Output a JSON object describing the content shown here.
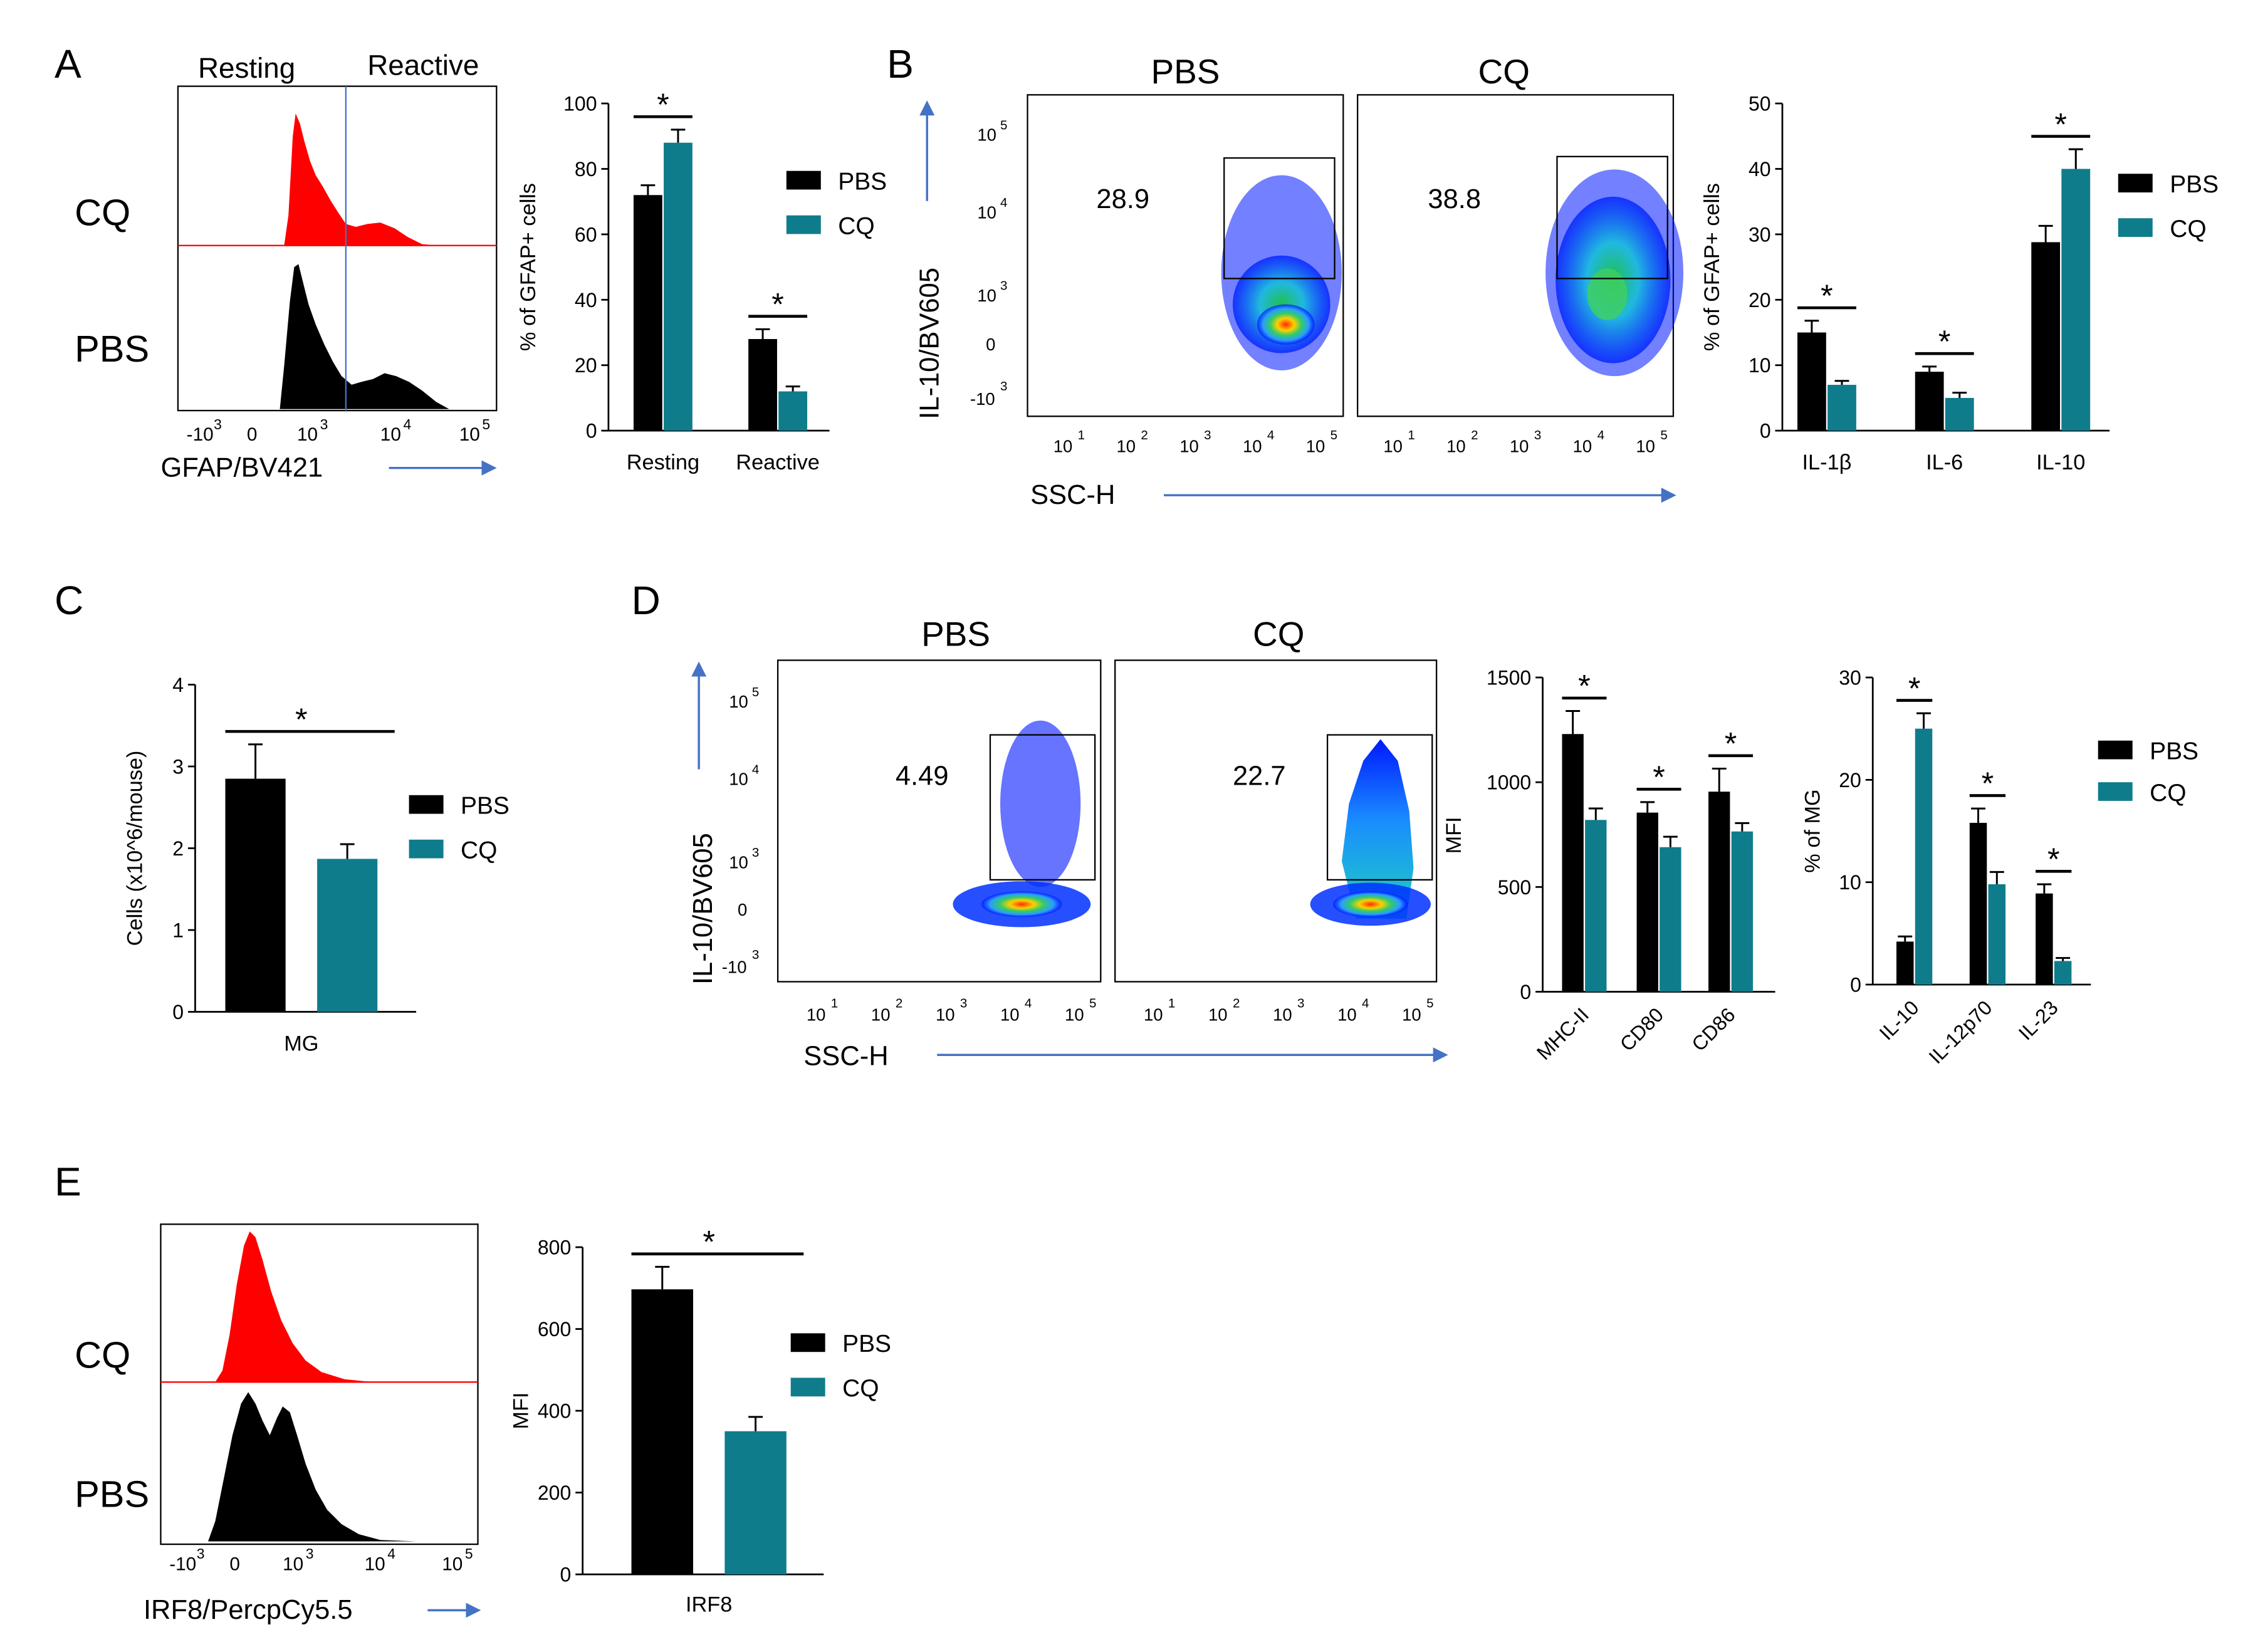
{
  "colors": {
    "pbs": "#000000",
    "cq": "#0f7c8c",
    "cq_hist": "#ff0000",
    "arrow": "#4472c4",
    "axis": "#000000"
  },
  "panels": {
    "A": "A",
    "B": "B",
    "C": "C",
    "D": "D",
    "E": "E"
  },
  "conditions": {
    "pbs": "PBS",
    "cq": "CQ"
  },
  "significance": "*",
  "chart_data": [
    {
      "id": "A_hist",
      "type": "histogram",
      "panel": "A",
      "gate_labels": [
        "Resting",
        "Reactive"
      ],
      "rows": [
        "CQ",
        "PBS"
      ],
      "xlabel": "GFAP/BV421",
      "xticks": [
        "-10^3",
        "0",
        "10^3",
        "10^4",
        "10^5"
      ]
    },
    {
      "id": "A_bar",
      "type": "bar",
      "panel": "A",
      "categories": [
        "Resting",
        "Reactive"
      ],
      "series": [
        {
          "name": "PBS",
          "values": [
            72,
            28
          ],
          "errors": [
            3,
            3
          ]
        },
        {
          "name": "CQ",
          "values": [
            88,
            12
          ],
          "errors": [
            4,
            1.5
          ]
        }
      ],
      "ylabel": "% of GFAP+ cells",
      "ylim": [
        0,
        100
      ],
      "yticks": [
        0,
        20,
        40,
        60,
        80,
        100
      ],
      "legend": [
        "PBS",
        "CQ"
      ]
    },
    {
      "id": "B_flow",
      "type": "scatter",
      "panel": "B",
      "plots": [
        {
          "title": "PBS",
          "gate_value": "28.9"
        },
        {
          "title": "CQ",
          "gate_value": "38.8"
        }
      ],
      "ylabel": "IL-10/BV605",
      "xlabel": "SSC-H",
      "yticks": [
        "10^5",
        "10^4",
        "10^3",
        "0",
        "-10^3"
      ],
      "xticks": [
        "10^1",
        "10^2",
        "10^3",
        "10^4",
        "10^5"
      ]
    },
    {
      "id": "B_bar",
      "type": "bar",
      "panel": "B",
      "categories": [
        "IL-1β",
        "IL-6",
        "IL-10"
      ],
      "series": [
        {
          "name": "PBS",
          "values": [
            15,
            9,
            28.8
          ],
          "errors": [
            1.8,
            0.8,
            2.5
          ]
        },
        {
          "name": "CQ",
          "values": [
            7,
            5,
            40
          ],
          "errors": [
            0.6,
            0.8,
            3
          ]
        }
      ],
      "ylabel": "% of GFAP+ cells",
      "ylim": [
        0,
        50
      ],
      "yticks": [
        0,
        10,
        20,
        30,
        40,
        50
      ],
      "legend": [
        "PBS",
        "CQ"
      ]
    },
    {
      "id": "C_bar",
      "type": "bar",
      "panel": "C",
      "categories": [
        "MG"
      ],
      "series": [
        {
          "name": "PBS",
          "values": [
            2.85
          ],
          "errors": [
            0.42
          ]
        },
        {
          "name": "CQ",
          "values": [
            1.87
          ],
          "errors": [
            0.18
          ]
        }
      ],
      "ylabel": "Cells (x10^6/mouse)",
      "ylim": [
        0,
        4
      ],
      "yticks": [
        0,
        1,
        2,
        3,
        4
      ],
      "legend": [
        "PBS",
        "CQ"
      ]
    },
    {
      "id": "D_flow",
      "type": "scatter",
      "panel": "D",
      "plots": [
        {
          "title": "PBS",
          "gate_value": "4.49"
        },
        {
          "title": "CQ",
          "gate_value": "22.7"
        }
      ],
      "ylabel": "IL-10/BV605",
      "xlabel": "SSC-H",
      "yticks": [
        "10^5",
        "10^4",
        "10^3",
        "0",
        "-10^3"
      ],
      "xticks": [
        "10^1",
        "10^2",
        "10^3",
        "10^4",
        "10^5"
      ]
    },
    {
      "id": "D_bar1",
      "type": "bar",
      "panel": "D",
      "categories": [
        "MHC-II",
        "CD80",
        "CD86"
      ],
      "series": [
        {
          "name": "PBS",
          "values": [
            1230,
            855,
            955
          ],
          "errors": [
            110,
            50,
            110
          ]
        },
        {
          "name": "CQ",
          "values": [
            820,
            690,
            765
          ],
          "errors": [
            55,
            50,
            40
          ]
        }
      ],
      "ylabel": "MFI",
      "ylim": [
        0,
        1500
      ],
      "yticks": [
        0,
        500,
        1000,
        1500
      ]
    },
    {
      "id": "D_bar2",
      "type": "bar",
      "panel": "D",
      "categories": [
        "IL-10",
        "IL-12p70",
        "IL-23"
      ],
      "series": [
        {
          "name": "PBS",
          "values": [
            4.2,
            15.8,
            8.9
          ],
          "errors": [
            0.5,
            1.4,
            0.9
          ]
        },
        {
          "name": "CQ",
          "values": [
            25,
            9.8,
            2.3
          ],
          "errors": [
            1.5,
            1.2,
            0.3
          ]
        }
      ],
      "ylabel": "% of MG",
      "ylim": [
        0,
        30
      ],
      "yticks": [
        0,
        10,
        20,
        30
      ],
      "legend": [
        "PBS",
        "CQ"
      ]
    },
    {
      "id": "E_hist",
      "type": "histogram",
      "panel": "E",
      "rows": [
        "CQ",
        "PBS"
      ],
      "xlabel": "IRF8/PercpCy5.5",
      "xticks": [
        "-10^3",
        "0",
        "10^3",
        "10^4",
        "10^5"
      ]
    },
    {
      "id": "E_bar",
      "type": "bar",
      "panel": "E",
      "categories": [
        "IRF8"
      ],
      "series": [
        {
          "name": "PBS",
          "values": [
            697
          ],
          "errors": [
            55
          ]
        },
        {
          "name": "CQ",
          "values": [
            350
          ],
          "errors": [
            35
          ]
        }
      ],
      "ylabel": "MFI",
      "ylim": [
        0,
        800
      ],
      "yticks": [
        0,
        200,
        400,
        600,
        800
      ],
      "legend": [
        "PBS",
        "CQ"
      ]
    }
  ]
}
